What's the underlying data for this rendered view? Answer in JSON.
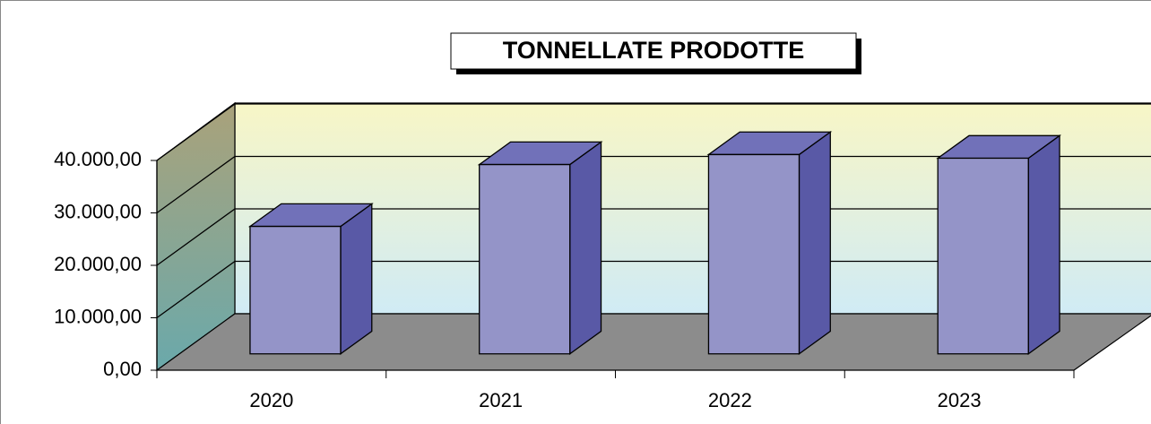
{
  "chart_data": {
    "type": "bar3d",
    "title": "TONNELLATE PRODOTTE",
    "categories": [
      "2020",
      "2021",
      "2022",
      "2023"
    ],
    "values": [
      24300,
      36100,
      38000,
      37300
    ],
    "color": "#9494c8",
    "ylim": [
      0,
      40000
    ],
    "yticks": [
      {
        "value": 0,
        "label": "0,00"
      },
      {
        "value": 10000,
        "label": "10.000,00"
      },
      {
        "value": 20000,
        "label": "20.000,00"
      },
      {
        "value": 30000,
        "label": "30.000,00"
      },
      {
        "value": 40000,
        "label": "40.000,00"
      }
    ],
    "grid": true
  }
}
